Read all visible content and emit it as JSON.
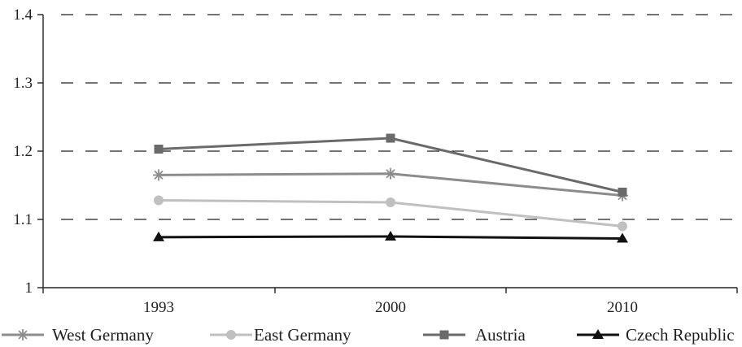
{
  "chart_data": {
    "type": "line",
    "title": "",
    "xlabel": "",
    "ylabel": "",
    "categories": [
      "1993",
      "2000",
      "2010"
    ],
    "ylim": [
      1,
      1.4
    ],
    "yticks": [
      1,
      1.1,
      1.2,
      1.3,
      1.4
    ],
    "ytick_labels": [
      "1",
      "1.1",
      "1.2",
      "1.3",
      "1.4"
    ],
    "grid": "horizontal-dashed",
    "legend_position": "bottom",
    "series": [
      {
        "name": "West Germany",
        "values": [
          1.165,
          1.167,
          1.135
        ],
        "color": "#8c8c8c",
        "marker": "asterisk"
      },
      {
        "name": "East Germany",
        "values": [
          1.128,
          1.125,
          1.09
        ],
        "color": "#c0c0c0",
        "marker": "circle"
      },
      {
        "name": "Austria",
        "values": [
          1.203,
          1.219,
          1.14
        ],
        "color": "#6a6a6a",
        "marker": "square"
      },
      {
        "name": "Czech Republic",
        "values": [
          1.074,
          1.075,
          1.072
        ],
        "color": "#111111",
        "marker": "triangle"
      }
    ]
  }
}
